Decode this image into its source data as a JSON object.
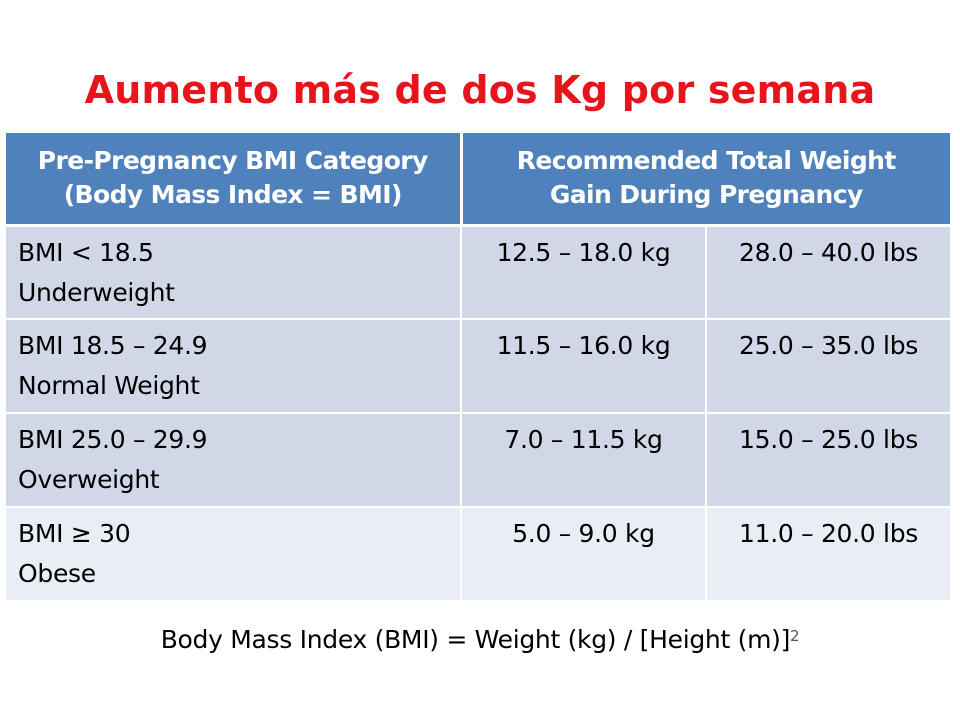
{
  "title": "Aumento más de dos Kg por semana",
  "table": {
    "header": {
      "category_line1": "Pre-Pregnancy BMI Category",
      "category_line2": "(Body Mass Index = BMI)",
      "gain_line1": "Recommended Total Weight",
      "gain_line2": "Gain During Pregnancy"
    },
    "rows": [
      {
        "bmi": "BMI < 18.5",
        "label": "Underweight",
        "kg": "12.5 – 18.0 kg",
        "lbs": "28.0 – 40.0 lbs"
      },
      {
        "bmi": "BMI 18.5 – 24.9",
        "label": "Normal Weight",
        "kg": "11.5 – 16.0 kg",
        "lbs": "25.0 – 35.0 lbs"
      },
      {
        "bmi": "BMI 25.0 – 29.9",
        "label": "Overweight",
        "kg": "7.0 – 11.5 kg",
        "lbs": "15.0 – 25.0 lbs"
      },
      {
        "bmi": "BMI ≥ 30",
        "label": "Obese",
        "kg": "5.0 – 9.0 kg",
        "lbs": "11.0 – 20.0 lbs"
      }
    ]
  },
  "formula": {
    "text": "Body Mass Index (BMI) = Weight (kg) / [Height (m)]",
    "exponent": "2"
  },
  "colors": {
    "title": "#e8141b",
    "header_bg": "#4f81bd",
    "row_odd_bg": "#d0d8e8",
    "row_even_bg": "#e9edf4"
  }
}
